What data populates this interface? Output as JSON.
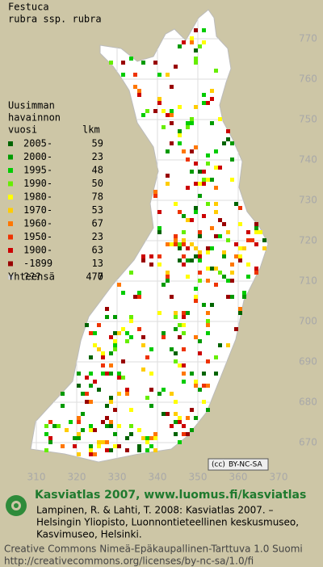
{
  "title": [
    "Festuca",
    "rubra ssp. rubra"
  ],
  "legend": {
    "heading": [
      "Uusimman",
      "havainnon"
    ],
    "year_header": "vuosi",
    "count_header": "lkm",
    "rows": [
      {
        "label": "2005-",
        "count": 59,
        "color": "#006400"
      },
      {
        "label": "2000-",
        "count": 23,
        "color": "#009a00"
      },
      {
        "label": "1995-",
        "count": 48,
        "color": "#00cc00"
      },
      {
        "label": "1990-",
        "count": 50,
        "color": "#66ee00"
      },
      {
        "label": "1980-",
        "count": 78,
        "color": "#ffff00"
      },
      {
        "label": "1970-",
        "count": 53,
        "color": "#ffcc00"
      },
      {
        "label": "1960-",
        "count": 67,
        "color": "#ff7700"
      },
      {
        "label": "1950-",
        "count": 23,
        "color": "#ee3300"
      },
      {
        "label": "1900-",
        "count": 63,
        "color": "#cc0000"
      },
      {
        "label": "-1899",
        "count": 13,
        "color": "#990000"
      },
      {
        "label": "???",
        "count": 0,
        "color": "#cccccc"
      }
    ],
    "total": {
      "label": "Yhteensä",
      "count": 477
    }
  },
  "grid": {
    "north": [
      770,
      760,
      750,
      740,
      730,
      720,
      710,
      700,
      690,
      680,
      670
    ],
    "east": [
      310,
      320,
      330,
      340,
      350,
      360,
      370
    ]
  },
  "license_badge": [
    "(cc)",
    "BY-NC-SA"
  ],
  "footer": {
    "heading": "Kasviatlas 2007, www.luomus.fi/kasviatlas",
    "citation": [
      "Lampinen, R. & Lahti, T. 2008: Kasviatlas 2007. –",
      "Helsingin Yliopisto, Luonnontieteellinen keskusmuseo,",
      "Kasvimuseo, Helsinki."
    ],
    "license": [
      "Creative Commons Nimeä-Epäkaupallinen-Tarttuva 1.0 Suomi",
      "http://creativecommons.org/licenses/by-nc-sa/1.0/fi"
    ]
  }
}
